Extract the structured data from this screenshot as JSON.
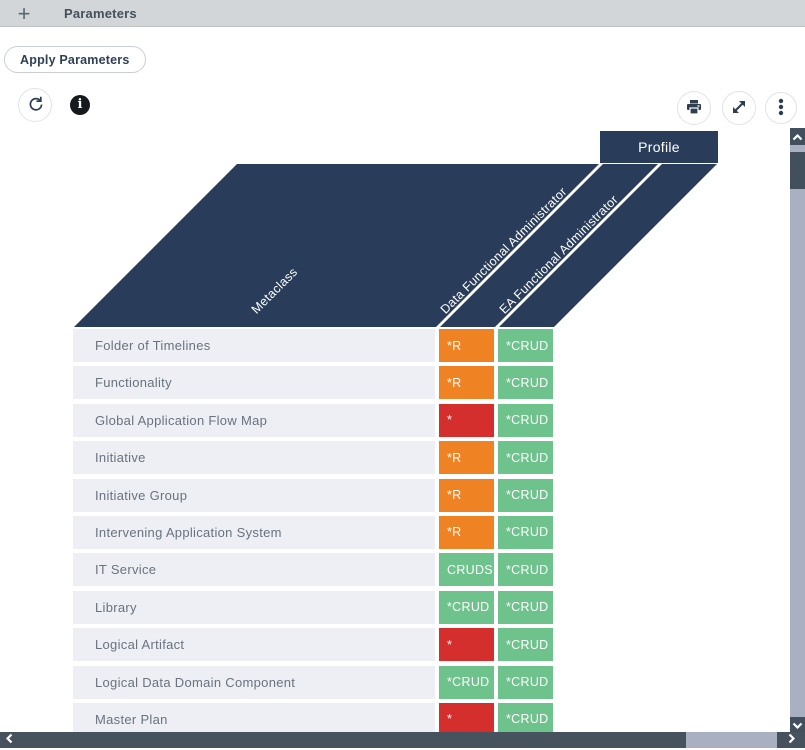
{
  "topbar": {
    "title": "Parameters",
    "plus_icon": "+"
  },
  "actions": {
    "apply_button": "Apply Parameters"
  },
  "icons": {
    "refresh": "refresh-icon",
    "info": "info-icon",
    "info_glyph": "i",
    "print": "print-icon",
    "expand": "expand-icon",
    "more": "more-options-icon"
  },
  "matrix": {
    "group_header": "Profile",
    "corner_header": "Metaclass",
    "column_headers": [
      "Data Functional Administrator",
      "EA Functional Administrator"
    ],
    "legend_colors": {
      "orange": "#ef8222",
      "red": "#d42f2d",
      "green": "#6ec28b",
      "header_navy": "#293d5a"
    },
    "rows": [
      {
        "label": "Folder of Timelines",
        "cells": [
          {
            "text": "*R",
            "color": "orange"
          },
          {
            "text": "*CRUD",
            "color": "green"
          }
        ]
      },
      {
        "label": "Functionality",
        "cells": [
          {
            "text": "*R",
            "color": "orange"
          },
          {
            "text": "*CRUD",
            "color": "green"
          }
        ]
      },
      {
        "label": "Global Application Flow Map",
        "cells": [
          {
            "text": "*",
            "color": "red"
          },
          {
            "text": "*CRUD",
            "color": "green"
          }
        ]
      },
      {
        "label": "Initiative",
        "cells": [
          {
            "text": "*R",
            "color": "orange"
          },
          {
            "text": "*CRUD",
            "color": "green"
          }
        ]
      },
      {
        "label": "Initiative Group",
        "cells": [
          {
            "text": "*R",
            "color": "orange"
          },
          {
            "text": "*CRUD",
            "color": "green"
          }
        ]
      },
      {
        "label": "Intervening Application System",
        "cells": [
          {
            "text": "*R",
            "color": "orange"
          },
          {
            "text": "*CRUD",
            "color": "green"
          }
        ]
      },
      {
        "label": "IT Service",
        "cells": [
          {
            "text": "CRUDS",
            "color": "green"
          },
          {
            "text": "*CRUD",
            "color": "green"
          }
        ]
      },
      {
        "label": "Library",
        "cells": [
          {
            "text": "*CRUD",
            "color": "green"
          },
          {
            "text": "*CRUD",
            "color": "green"
          }
        ]
      },
      {
        "label": "Logical Artifact",
        "cells": [
          {
            "text": "*",
            "color": "red"
          },
          {
            "text": "*CRUD",
            "color": "green"
          }
        ]
      },
      {
        "label": "Logical Data Domain Component",
        "cells": [
          {
            "text": "*CRUD",
            "color": "green"
          },
          {
            "text": "*CRUD",
            "color": "green"
          }
        ]
      },
      {
        "label": "Master Plan",
        "cells": [
          {
            "text": "*",
            "color": "red"
          },
          {
            "text": "*CRUD",
            "color": "green"
          }
        ]
      }
    ]
  }
}
